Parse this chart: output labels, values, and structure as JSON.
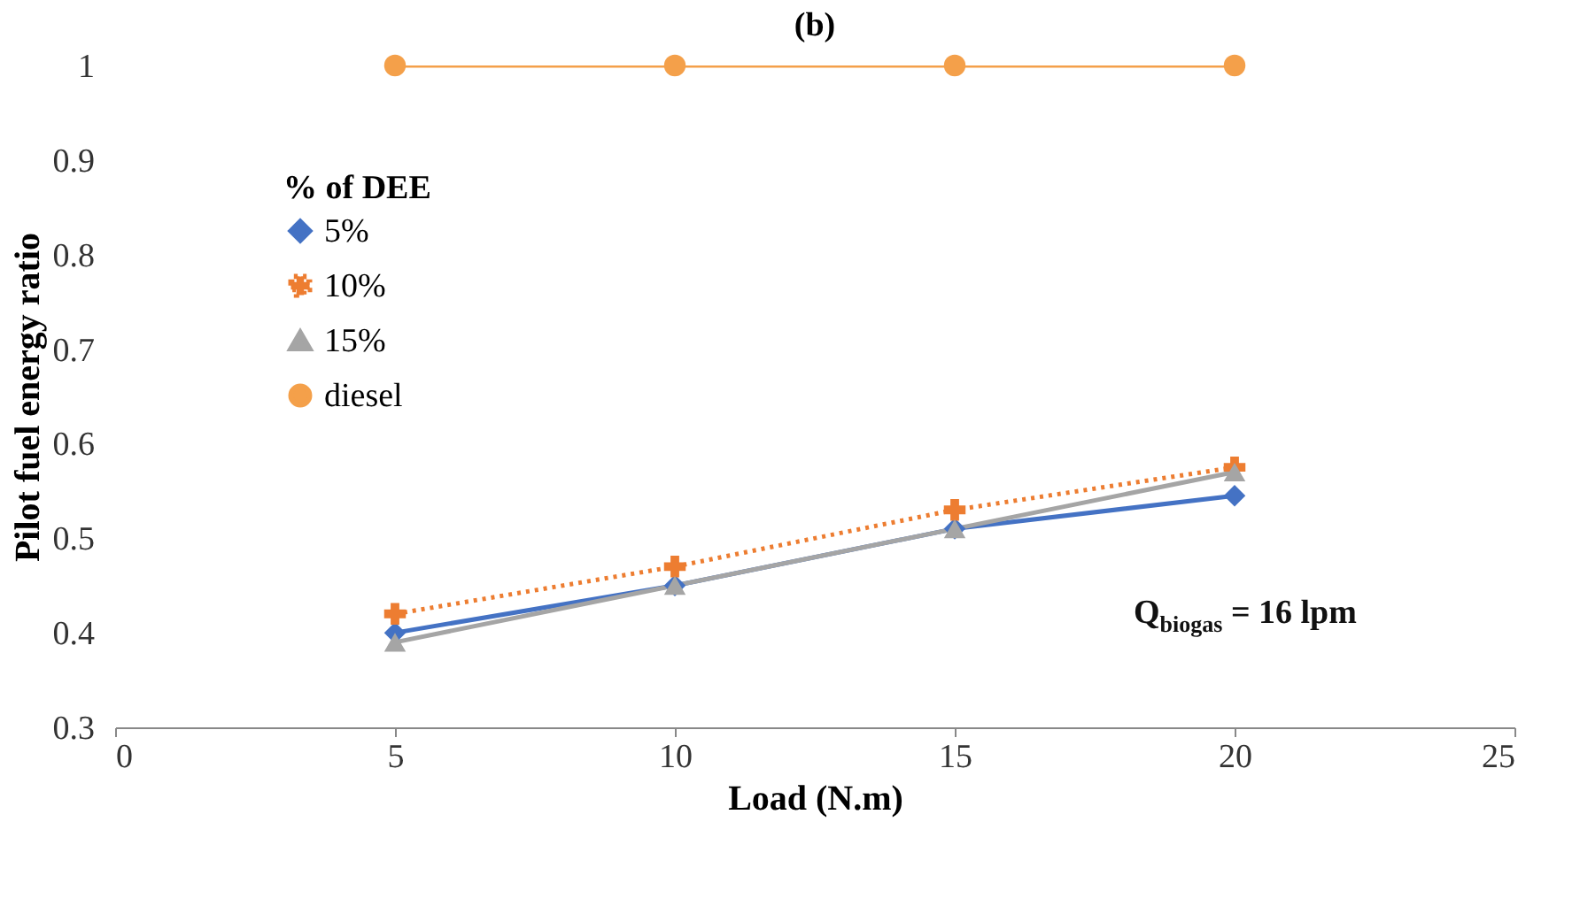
{
  "chart_data": {
    "type": "line",
    "title": "(b)",
    "xlabel": "Load (N.m)",
    "ylabel": "Pilot fuel energy ratio",
    "legend_title": "% of DEE",
    "x": [
      5,
      10,
      15,
      20
    ],
    "series": [
      {
        "name": "5%",
        "color": "#4472c4",
        "marker": "diamond",
        "line_style": "solid",
        "values": [
          0.4,
          0.45,
          0.51,
          0.545
        ]
      },
      {
        "name": "10%",
        "color": "#ed7d31",
        "marker": "cross",
        "line_style": "dotted",
        "values": [
          0.42,
          0.47,
          0.53,
          0.575
        ]
      },
      {
        "name": "15%",
        "color": "#a5a5a5",
        "marker": "triangle",
        "line_style": "solid",
        "values": [
          0.39,
          0.45,
          0.51,
          0.57
        ]
      },
      {
        "name": "diesel",
        "color": "#f4a04a",
        "marker": "circle",
        "line_style": "solid",
        "values": [
          1,
          1,
          1,
          1
        ]
      }
    ],
    "xlim": [
      0,
      25
    ],
    "xticks": [
      0,
      5,
      10,
      15,
      20,
      25
    ],
    "ylim": [
      0.3,
      1
    ],
    "yticks": [
      0.3,
      0.4,
      0.5,
      0.6,
      0.7,
      0.8,
      0.9,
      1
    ],
    "grid": false,
    "legend": "top left",
    "annotations": [
      "Q$_{biogas}$ = 16 lpm"
    ]
  }
}
